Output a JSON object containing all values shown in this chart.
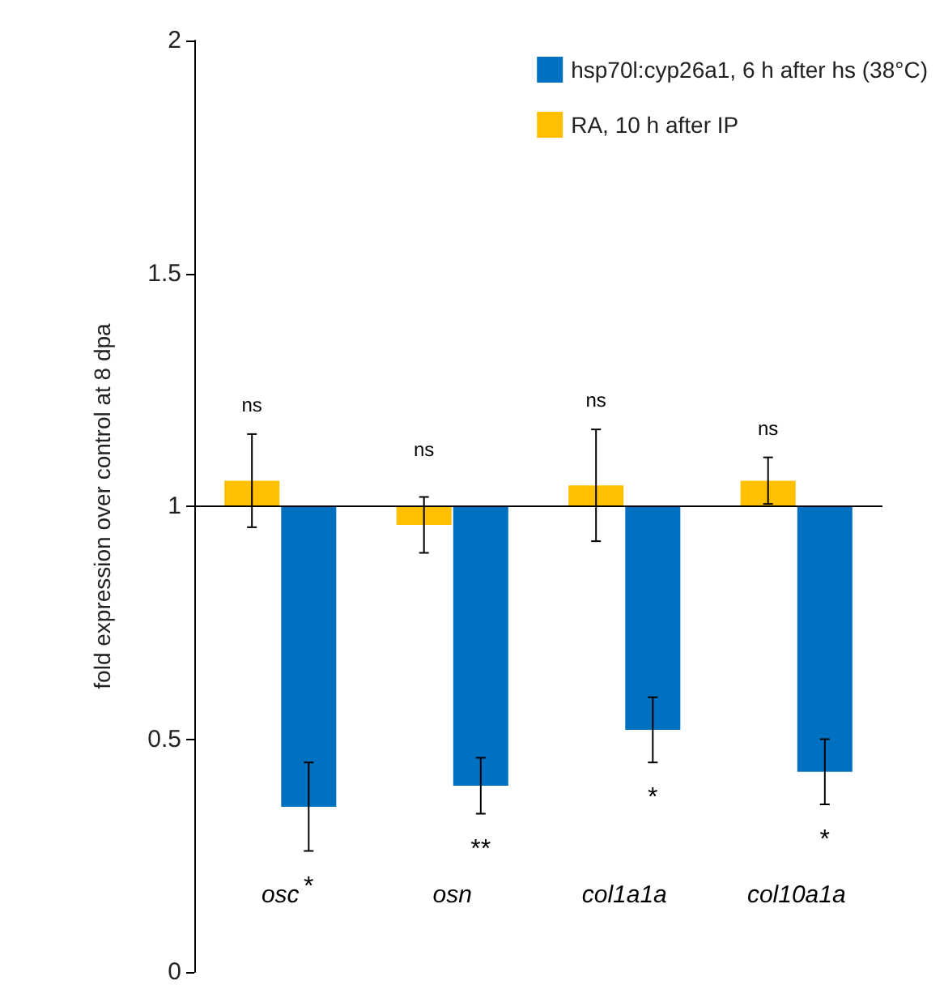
{
  "chart_data": {
    "type": "bar",
    "ylabel": "fold expression over control at 8 dpa",
    "categories": [
      "osc",
      "osn",
      "col1a1a",
      "col10a1a"
    ],
    "series": [
      {
        "name": "RA, 10 h after IP",
        "color": "#ffc000",
        "base": [
          1,
          1,
          1,
          1
        ],
        "values": [
          0.055,
          -0.04,
          0.045,
          0.055
        ],
        "errors": [
          0.1,
          0.06,
          0.12,
          0.05
        ]
      },
      {
        "name": "hsp70l:cyp26a1, 6 h after hs (38°C)",
        "color": "#0070c0",
        "base": [
          1,
          1,
          1,
          1
        ],
        "values": [
          -0.645,
          -0.6,
          -0.48,
          -0.57
        ],
        "errors": [
          0.095,
          0.06,
          0.07,
          0.07
        ]
      }
    ],
    "ylim": [
      0,
      2
    ],
    "yticks": [
      0,
      0.5,
      1,
      1.5,
      2
    ],
    "grid": false,
    "legend": "top right",
    "ref_lines": [
      {
        "axis": "y",
        "value": 1
      }
    ],
    "annotations": [
      "ns",
      "ns",
      "ns",
      "ns",
      "*",
      "**",
      "*",
      "*"
    ]
  }
}
